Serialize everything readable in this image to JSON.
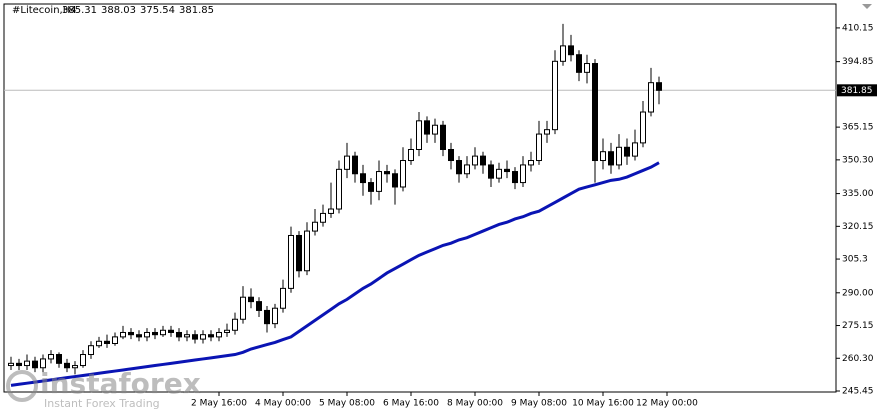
{
  "chart_data": {
    "type": "candlestick",
    "title": "#Litecoin,H4",
    "open": [
      257,
      258,
      257,
      259,
      256,
      260,
      262,
      258,
      256,
      257,
      262,
      266,
      268,
      267,
      270,
      272,
      271,
      270,
      272,
      271,
      273,
      272,
      270,
      271,
      269,
      271,
      270,
      272,
      273,
      278,
      288,
      286,
      282,
      276,
      283,
      292,
      316,
      300,
      318,
      322,
      326,
      328,
      346,
      352,
      344,
      340,
      336,
      345,
      344,
      338,
      350,
      355,
      368,
      362,
      366,
      355,
      350,
      344,
      348,
      352,
      348,
      342,
      346,
      345,
      340,
      348,
      350,
      362,
      364,
      395,
      402,
      398,
      390,
      394,
      350,
      354,
      348,
      356,
      352,
      358,
      372,
      385.31
    ],
    "high": [
      261,
      260,
      262,
      261,
      262,
      264,
      263,
      260,
      259,
      264,
      268,
      270,
      271,
      272,
      275,
      274,
      273,
      274,
      274,
      275,
      275,
      274,
      273,
      273,
      273,
      273,
      274,
      276,
      281,
      293,
      292,
      288,
      284,
      285,
      296,
      320,
      318,
      322,
      328,
      330,
      340,
      350,
      358,
      354,
      348,
      342,
      350,
      348,
      346,
      356,
      360,
      372,
      370,
      369,
      368,
      358,
      352,
      352,
      356,
      354,
      350,
      349,
      350,
      347,
      352,
      354,
      368,
      368,
      400,
      412,
      407,
      400,
      398,
      396,
      360,
      358,
      362,
      360,
      364,
      377,
      392,
      388.03
    ],
    "low": [
      255,
      255,
      255,
      254,
      254,
      258,
      256,
      254,
      253,
      256,
      260,
      265,
      265,
      266,
      269,
      269,
      268,
      268,
      269,
      270,
      270,
      268,
      268,
      267,
      267,
      268,
      268,
      270,
      271,
      276,
      283,
      279,
      272,
      274,
      281,
      290,
      297,
      298,
      316,
      320,
      324,
      326,
      342,
      340,
      334,
      330,
      332,
      340,
      330,
      336,
      348,
      352,
      358,
      358,
      352,
      346,
      340,
      342,
      346,
      344,
      338,
      340,
      342,
      337,
      338,
      345,
      348,
      358,
      362,
      393,
      395,
      386,
      385,
      340,
      346,
      344,
      346,
      348,
      350,
      356,
      370,
      375.54
    ],
    "close": [
      258,
      257,
      259,
      256,
      260,
      262,
      258,
      256,
      257,
      262,
      266,
      268,
      267,
      270,
      272,
      271,
      270,
      272,
      271,
      273,
      272,
      270,
      271,
      269,
      271,
      270,
      272,
      273,
      278,
      288,
      286,
      282,
      276,
      283,
      292,
      316,
      300,
      318,
      322,
      326,
      328,
      346,
      352,
      344,
      340,
      336,
      345,
      344,
      338,
      350,
      355,
      368,
      362,
      366,
      355,
      350,
      344,
      348,
      352,
      348,
      342,
      346,
      345,
      340,
      348,
      350,
      362,
      364,
      395,
      402,
      398,
      390,
      394,
      350,
      354,
      348,
      356,
      352,
      358,
      372,
      385.31,
      381.85
    ],
    "moving_average": {
      "color": "#0a14b4",
      "values": [
        248,
        248.5,
        249,
        249.5,
        250,
        250.5,
        251,
        251.5,
        252,
        252.5,
        253,
        253.5,
        254,
        254.5,
        255,
        255.5,
        256,
        256.5,
        257,
        257.5,
        258,
        258.5,
        259,
        259.5,
        260,
        260.5,
        261,
        261.5,
        262,
        263,
        264.5,
        265.5,
        266.5,
        267.5,
        268.8,
        270,
        272.5,
        275,
        277.5,
        280,
        282.5,
        285,
        287,
        289.5,
        292,
        294,
        296.5,
        299,
        301,
        303,
        305,
        307,
        308.5,
        310,
        311.5,
        312.5,
        314,
        315,
        316.5,
        318,
        319.5,
        321,
        322,
        323.5,
        324.5,
        326,
        327,
        329,
        331,
        333,
        335,
        337,
        338,
        339,
        340,
        341,
        341.5,
        342.5,
        344,
        345.5,
        347,
        349
      ]
    },
    "ylim": [
      245,
      421
    ],
    "yticks": [
      410.15,
      394.85,
      365.15,
      {
        "value": 350.3,
        "label": "350.30"
      },
      {
        "value": 335,
        "label": "335.00"
      },
      320.15,
      305.3,
      {
        "value": 290,
        "label": "290.00"
      },
      275.15,
      {
        "value": 260.3,
        "label": "260.30"
      },
      245.45
    ],
    "xlim": [
      -0.875,
      103.125
    ],
    "xticks": [
      {
        "value": 26,
        "label": "2 May 16:00"
      },
      {
        "value": 34,
        "label": "4 May 00:00"
      },
      {
        "value": 42,
        "label": "5 May 08:00"
      },
      {
        "value": 50,
        "label": "6 May 16:00"
      },
      {
        "value": 58,
        "label": "8 May 00:00"
      },
      {
        "value": 66,
        "label": "9 May 08:00"
      },
      {
        "value": 74,
        "label": "10 May 16:00"
      },
      {
        "value": 82,
        "label": "12 May 00:00"
      }
    ],
    "watermark": {
      "logo": "instaforex",
      "tagline": "Instant Forex Trading"
    }
  }
}
